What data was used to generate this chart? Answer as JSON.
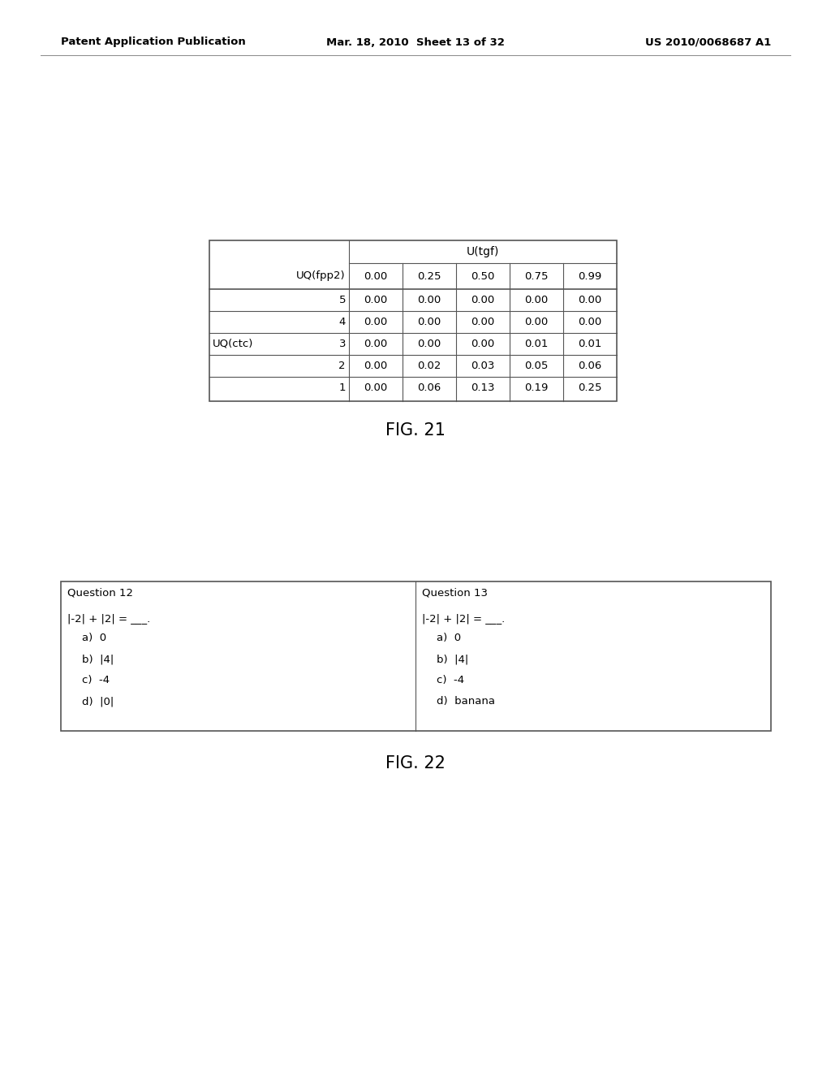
{
  "header_left": "Patent Application Publication",
  "header_mid": "Mar. 18, 2010  Sheet 13 of 32",
  "header_right": "US 2010/0068687 A1",
  "fig21_label": "FIG. 21",
  "fig22_label": "FIG. 22",
  "table_title": "U(tgf)",
  "table_col_header_label": "UQ(fpp2)",
  "table_col_values": [
    "0.00",
    "0.25",
    "0.50",
    "0.75",
    "0.99"
  ],
  "table_row_label": "UQ(ctc)",
  "table_rows": [
    {
      "label": "5",
      "values": [
        "0.00",
        "0.00",
        "0.00",
        "0.00",
        "0.00"
      ]
    },
    {
      "label": "4",
      "values": [
        "0.00",
        "0.00",
        "0.00",
        "0.00",
        "0.00"
      ]
    },
    {
      "label": "3",
      "values": [
        "0.00",
        "0.00",
        "0.00",
        "0.01",
        "0.01"
      ]
    },
    {
      "label": "2",
      "values": [
        "0.00",
        "0.02",
        "0.03",
        "0.05",
        "0.06"
      ]
    },
    {
      "label": "1",
      "values": [
        "0.00",
        "0.06",
        "0.13",
        "0.19",
        "0.25"
      ]
    }
  ],
  "q12_title": "Question 12",
  "q12_equation": "|-2| + |2| = ___.",
  "q12_options": [
    "a)  0",
    "b)  |4|",
    "c)  -4",
    "d)  |0|"
  ],
  "q13_title": "Question 13",
  "q13_equation": "|-2| + |2| = ___.",
  "q13_options": [
    "a)  0",
    "b)  |4|",
    "c)  -4",
    "d)  banana"
  ],
  "bg_color": "#ffffff",
  "text_color": "#000000",
  "line_color": "#555555"
}
